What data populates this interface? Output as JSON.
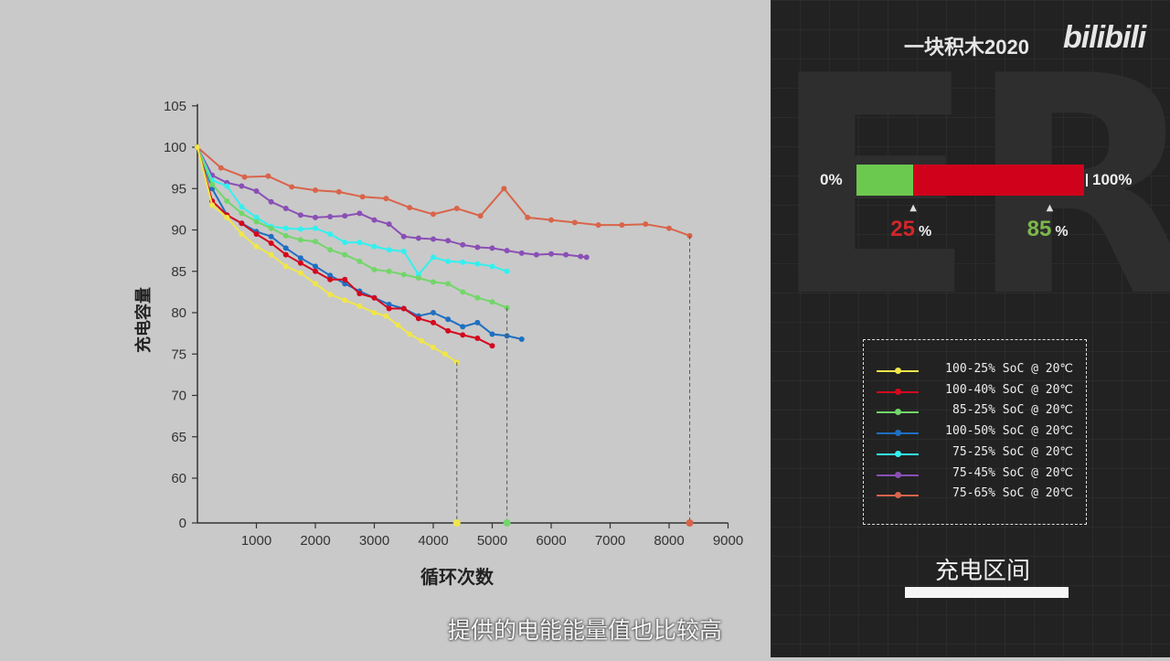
{
  "chart_data": {
    "type": "line",
    "title": "",
    "xlabel": "循环次数",
    "ylabel": "充电容量",
    "xlim": [
      0,
      9000
    ],
    "y_ticks": [
      0,
      60,
      65,
      70,
      75,
      80,
      85,
      90,
      95,
      100,
      105
    ],
    "x_ticks": [
      1000,
      2000,
      3000,
      4000,
      5000,
      6000,
      7000,
      8000,
      9000
    ],
    "y_broken_axis": true,
    "grid": false,
    "series": [
      {
        "name": "100-25% SoC @ 20℃",
        "color": "#f0e64a",
        "x": [
          0,
          250,
          500,
          750,
          1000,
          1250,
          1500,
          1750,
          2000,
          2250,
          2500,
          2750,
          3000,
          3200,
          3400,
          3600,
          3800,
          4000,
          4200,
          4400
        ],
        "y": [
          100,
          93,
          91.5,
          89.5,
          88,
          87,
          85.6,
          84.8,
          83.5,
          82.2,
          81.5,
          80.8,
          80,
          79.6,
          78.5,
          77.4,
          76.6,
          75.8,
          75,
          74
        ],
        "end_marker": 4400
      },
      {
        "name": "100-40% SoC @ 20℃",
        "color": "#d4091e",
        "x": [
          0,
          250,
          500,
          750,
          1000,
          1250,
          1500,
          1750,
          2000,
          2250,
          2500,
          2750,
          3000,
          3250,
          3500,
          3750,
          4000,
          4250,
          4500,
          4750,
          5000
        ],
        "y": [
          100,
          93.5,
          91.8,
          90.8,
          89.5,
          88.4,
          87,
          86,
          85,
          84,
          84,
          82.3,
          81.8,
          80.5,
          80.5,
          79.3,
          78.8,
          77.8,
          77.3,
          76.9,
          76
        ]
      },
      {
        "name": "85-25% SoC @ 20℃",
        "color": "#72d66a",
        "x": [
          0,
          250,
          500,
          750,
          1000,
          1250,
          1500,
          1750,
          2000,
          2250,
          2500,
          2750,
          3000,
          3250,
          3500,
          3750,
          4000,
          4250,
          4500,
          4750,
          5000,
          5250
        ],
        "y": [
          100,
          95.5,
          93.5,
          92,
          91,
          90.2,
          89.3,
          88.8,
          88.6,
          87.6,
          87,
          86.2,
          85.2,
          85,
          84.6,
          84.2,
          83.7,
          83.5,
          82.5,
          81.8,
          81.3,
          80.6
        ],
        "end_marker": 5250
      },
      {
        "name": "100-50% SoC @ 20℃",
        "color": "#1f6fc1",
        "x": [
          0,
          250,
          500,
          750,
          1000,
          1250,
          1500,
          1750,
          2000,
          2250,
          2500,
          2750,
          3000,
          3250,
          3500,
          3750,
          4000,
          4250,
          4500,
          4750,
          5000,
          5250,
          5500
        ],
        "y": [
          100,
          95,
          91.8,
          90.8,
          89.8,
          89.2,
          87.8,
          86.6,
          85.6,
          84.5,
          83.5,
          82.6,
          81.8,
          81,
          80.5,
          79.6,
          80,
          79.2,
          78.3,
          78.8,
          77.4,
          77.2,
          76.8
        ]
      },
      {
        "name": "75-25% SoC @ 20℃",
        "color": "#33f0f0",
        "x": [
          0,
          250,
          500,
          750,
          1000,
          1250,
          1500,
          1750,
          2000,
          2250,
          2500,
          2750,
          3000,
          3250,
          3500,
          3750,
          4000,
          4250,
          4500,
          4750,
          5000,
          5250
        ],
        "y": [
          100,
          96,
          95.3,
          92.8,
          91.5,
          90.4,
          90.2,
          90.1,
          90.2,
          89.5,
          88.5,
          88.5,
          88,
          87.6,
          87.4,
          84.6,
          86.7,
          86.2,
          86.1,
          85.9,
          85.6,
          85
        ]
      },
      {
        "name": "75-45% SoC @ 20℃",
        "color": "#8a4fb5",
        "x": [
          0,
          250,
          500,
          750,
          1000,
          1250,
          1500,
          1750,
          2000,
          2250,
          2500,
          2750,
          3000,
          3250,
          3500,
          3750,
          4000,
          4250,
          4500,
          4750,
          5000,
          5250,
          5500,
          5750,
          6000,
          6250,
          6500,
          6600
        ],
        "y": [
          100,
          96.6,
          95.7,
          95.3,
          94.7,
          93.4,
          92.6,
          91.8,
          91.5,
          91.6,
          91.7,
          92,
          91.2,
          90.7,
          89.2,
          89,
          88.9,
          88.7,
          88.2,
          87.9,
          87.8,
          87.5,
          87.2,
          87,
          87.1,
          87,
          86.8,
          86.7
        ]
      },
      {
        "name": "75-65% SoC @ 20℃",
        "color": "#d9644a",
        "x": [
          0,
          400,
          800,
          1200,
          1600,
          2000,
          2400,
          2800,
          3200,
          3600,
          4000,
          4400,
          4800,
          5200,
          5600,
          6000,
          6400,
          6800,
          7200,
          7600,
          8000,
          8350
        ],
        "y": [
          100,
          97.5,
          96.4,
          96.5,
          95.2,
          94.8,
          94.6,
          94,
          93.8,
          92.7,
          91.9,
          92.6,
          91.7,
          95,
          91.5,
          91.2,
          90.9,
          90.6,
          90.6,
          90.7,
          90.2,
          89.3
        ],
        "end_marker": 8350
      }
    ]
  },
  "brand": {
    "channel": "一块积木2020",
    "logo": "bilibili"
  },
  "bg_letters": "ERY",
  "charge_range": {
    "left_label": "0%",
    "right_label": "100%",
    "low": 25,
    "high": 85,
    "low_text": "25",
    "high_text": "85",
    "percent_sign": "%",
    "title": "充电区间",
    "colors": {
      "used": "#d0021b",
      "below": "#6cc94f"
    }
  },
  "subtitle": "提供的电能能量值也比较高"
}
